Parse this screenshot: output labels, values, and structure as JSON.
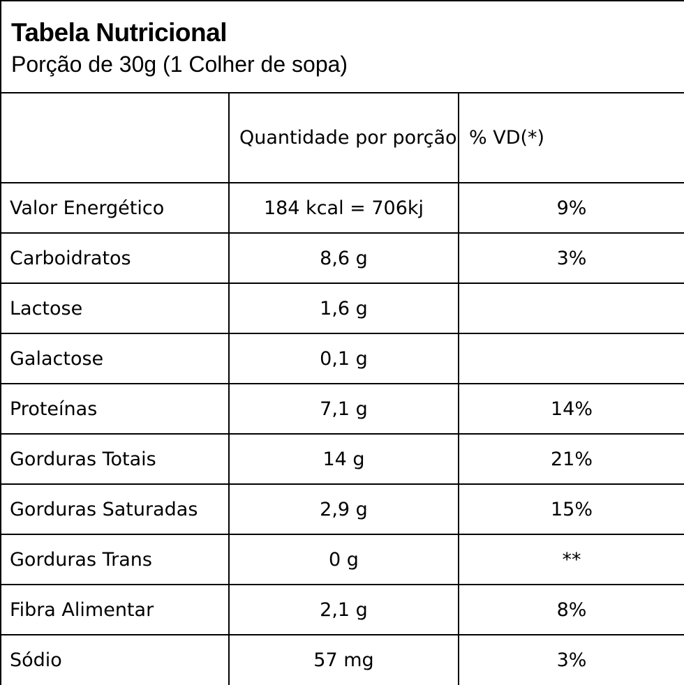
{
  "header": {
    "title": "Tabela Nutricional",
    "subtitle": "Porção de 30g (1 Colher de sopa)"
  },
  "table": {
    "columns": [
      "",
      "Quantidade por porção",
      "% VD(*)"
    ],
    "rows": [
      {
        "nutrient": "Valor Energético",
        "amount": "184 kcal = 706kj",
        "dv": "9%"
      },
      {
        "nutrient": "Carboidratos",
        "amount": "8,6 g",
        "dv": "3%"
      },
      {
        "nutrient": "Lactose",
        "amount": "1,6 g",
        "dv": ""
      },
      {
        "nutrient": "Galactose",
        "amount": "0,1 g",
        "dv": ""
      },
      {
        "nutrient": "Proteínas",
        "amount": "7,1 g",
        "dv": "14%"
      },
      {
        "nutrient": "Gorduras Totais",
        "amount": "14 g",
        "dv": "21%"
      },
      {
        "nutrient": "Gorduras Saturadas",
        "amount": "2,9 g",
        "dv": "15%"
      },
      {
        "nutrient": "Gorduras Trans",
        "amount": "0 g",
        "dv": "**"
      },
      {
        "nutrient": "Fibra Alimentar",
        "amount": "2,1 g",
        "dv": "8%"
      },
      {
        "nutrient": "Sódio",
        "amount": "57 mg",
        "dv": "3%"
      }
    ]
  }
}
